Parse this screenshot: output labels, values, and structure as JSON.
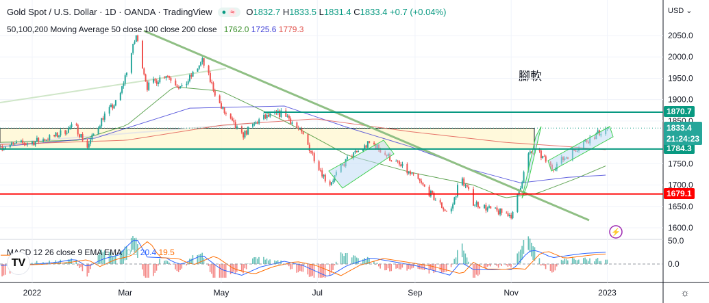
{
  "header": {
    "title": "Gold Spot / U.S. Dollar · 1D · OANDA · TradingView",
    "o_label": "O",
    "o": "1832.7",
    "h_label": "H",
    "h": "1833.5",
    "l_label": "L",
    "l": "1831.4",
    "c_label": "C",
    "c": "1833.4",
    "change": "+0.7 (+0.04%)",
    "ma_label": "50,100,200 Moving Average 50 close 100 close 200 close",
    "ma50": "1762.0",
    "ma100": "1725.6",
    "ma200": "1779.3",
    "macd_label": "MACD 12 26 close 9 EMA EMA",
    "macd_hist": "0.9",
    "macd_val": "20.4",
    "macd_signal": "19.5",
    "currency": "USD ⌄",
    "annotation": "腳軟",
    "logo": "TV"
  },
  "colors": {
    "up": "#26a69a",
    "down": "#ef5350",
    "ma50": "#3a8f2a",
    "ma100": "#3b3bd6",
    "ma200": "#e0504a",
    "level": "#089981",
    "support": "#ff0000",
    "trend": "#8fbf84"
  },
  "chart_data": {
    "type": "candlestick",
    "title": "Gold Spot / U.S. Dollar · 1D",
    "ylim": [
      1570,
      2080
    ],
    "y_ticks": [
      "2050.0",
      "2000.0",
      "1950.0",
      "1900.0",
      "1850.0",
      "1750.0",
      "1700.0",
      "1650.0",
      "1600.0"
    ],
    "y_tick_values": [
      2050,
      2000,
      1950,
      1900,
      1850,
      1750,
      1700,
      1650,
      1600
    ],
    "x_ticks": [
      "2022",
      "Mar",
      "May",
      "Jul",
      "Sep",
      "Nov",
      "2023"
    ],
    "x_tick_days": [
      0,
      59,
      120,
      181,
      243,
      304,
      365
    ],
    "day_range": [
      -20,
      375
    ],
    "close_keypoints": [
      [
        -20,
        1790
      ],
      [
        0,
        1800
      ],
      [
        15,
        1815
      ],
      [
        27,
        1840
      ],
      [
        35,
        1790
      ],
      [
        45,
        1860
      ],
      [
        55,
        1900
      ],
      [
        66,
        2050
      ],
      [
        73,
        1930
      ],
      [
        85,
        1960
      ],
      [
        95,
        1925
      ],
      [
        108,
        1990
      ],
      [
        120,
        1880
      ],
      [
        133,
        1815
      ],
      [
        145,
        1855
      ],
      [
        160,
        1870
      ],
      [
        172,
        1815
      ],
      [
        188,
        1700
      ],
      [
        200,
        1760
      ],
      [
        215,
        1800
      ],
      [
        245,
        1710
      ],
      [
        265,
        1630
      ],
      [
        272,
        1720
      ],
      [
        280,
        1660
      ],
      [
        292,
        1640
      ],
      [
        305,
        1630
      ],
      [
        315,
        1770
      ],
      [
        320,
        1780
      ],
      [
        330,
        1740
      ],
      [
        350,
        1800
      ],
      [
        365,
        1833.4
      ]
    ],
    "ma50_keypoints": [
      [
        -20,
        1800
      ],
      [
        30,
        1805
      ],
      [
        60,
        1840
      ],
      [
        90,
        1930
      ],
      [
        120,
        1920
      ],
      [
        160,
        1850
      ],
      [
        200,
        1770
      ],
      [
        240,
        1730
      ],
      [
        280,
        1700
      ],
      [
        300,
        1670
      ],
      [
        320,
        1680
      ],
      [
        345,
        1715
      ],
      [
        375,
        1762
      ]
    ],
    "ma100_keypoints": [
      [
        -20,
        1790
      ],
      [
        40,
        1810
      ],
      [
        100,
        1880
      ],
      [
        160,
        1885
      ],
      [
        200,
        1835
      ],
      [
        240,
        1790
      ],
      [
        280,
        1735
      ],
      [
        310,
        1705
      ],
      [
        340,
        1718
      ],
      [
        375,
        1725.6
      ]
    ],
    "ma200_keypoints": [
      [
        -20,
        1795
      ],
      [
        60,
        1805
      ],
      [
        120,
        1840
      ],
      [
        180,
        1855
      ],
      [
        240,
        1825
      ],
      [
        300,
        1800
      ],
      [
        340,
        1790
      ],
      [
        375,
        1779.3
      ]
    ],
    "levels": [
      {
        "label": "1870.7",
        "value": 1870.7,
        "color": "#089981"
      },
      {
        "label": "1784.3",
        "value": 1784.3,
        "color": "#089981"
      },
      {
        "label": "1679.1",
        "value": 1679.1,
        "color": "#ff0000"
      }
    ],
    "last_price": {
      "label": "1833.4",
      "countdown": "21:24:23"
    },
    "macd_ticks": [
      "50.0",
      "0.0"
    ]
  }
}
